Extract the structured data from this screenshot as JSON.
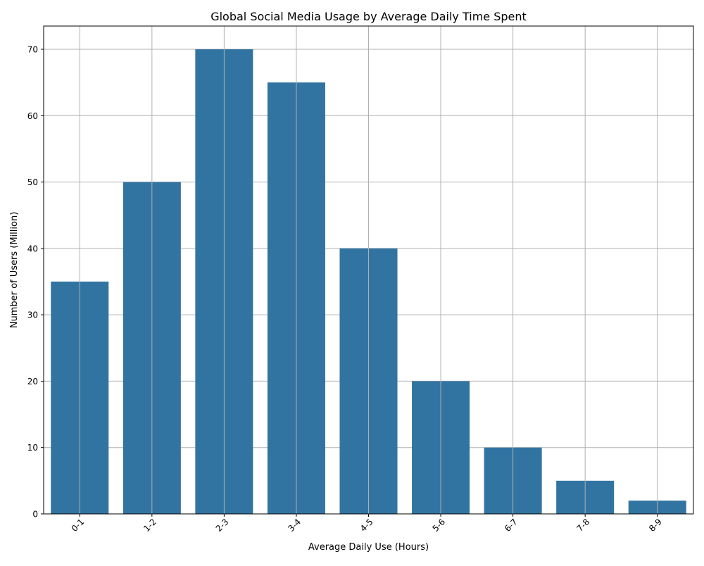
{
  "chart_data": {
    "type": "bar",
    "title": "Global Social Media Usage by Average Daily Time Spent",
    "xlabel": "Average Daily Use (Hours)",
    "ylabel": "Number of Users (Million)",
    "categories": [
      "0-1",
      "1-2",
      "2-3",
      "3-4",
      "4-5",
      "5-6",
      "6-7",
      "7-8",
      "8-9"
    ],
    "values": [
      35,
      50,
      70,
      65,
      40,
      20,
      10,
      5,
      2
    ],
    "ylim": [
      0,
      73.5
    ],
    "yticks": [
      0,
      10,
      20,
      30,
      40,
      50,
      60,
      70
    ],
    "grid": true,
    "legend": "none",
    "colors": {
      "bar": "#3274a1",
      "grid": "#b0b0b0",
      "axis": "#000000"
    }
  }
}
